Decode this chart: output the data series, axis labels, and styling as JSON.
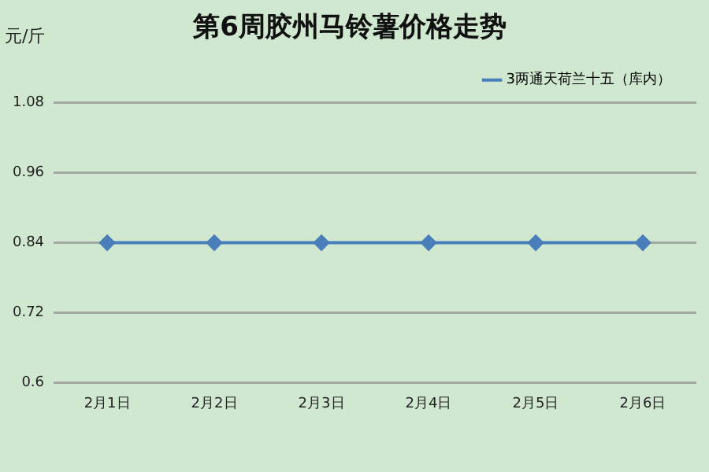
{
  "chart_data": {
    "type": "line",
    "title": "第6周胶州马铃薯价格走势",
    "ylabel": "元/斤",
    "categories": [
      "2月1日",
      "2月2日",
      "2月3日",
      "2月4日",
      "2月5日",
      "2月6日"
    ],
    "series": [
      {
        "name": "3两通天荷兰十五（库内）",
        "color": "#4a7ebb",
        "values": [
          0.84,
          0.84,
          0.84,
          0.84,
          0.84,
          0.84
        ]
      }
    ],
    "ylim": [
      0.6,
      1.08
    ],
    "yticks": [
      0.6,
      0.72,
      0.84,
      0.96,
      1.08
    ],
    "grid": "y",
    "legend": "top right",
    "marker": "diamond",
    "line_style": "solid"
  }
}
